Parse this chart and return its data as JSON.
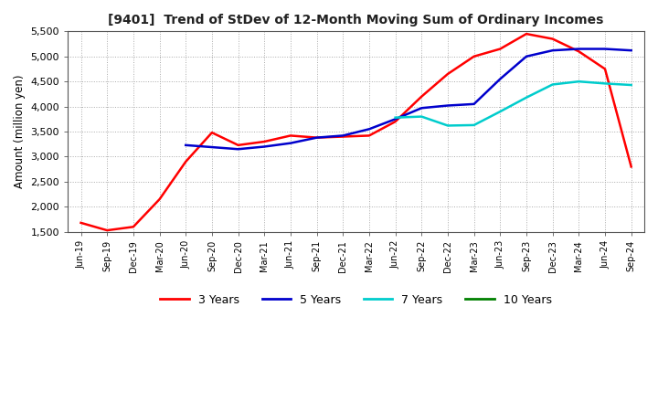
{
  "title": "[9401]  Trend of StDev of 12-Month Moving Sum of Ordinary Incomes",
  "ylabel": "Amount (million yen)",
  "ylim": [
    1500,
    5500
  ],
  "yticks": [
    1500,
    2000,
    2500,
    3000,
    3500,
    4000,
    4500,
    5000,
    5500
  ],
  "background_color": "#ffffff",
  "grid_color": "#aaaaaa",
  "dates": [
    "Jun-19",
    "Sep-19",
    "Dec-19",
    "Mar-20",
    "Jun-20",
    "Sep-20",
    "Dec-20",
    "Mar-21",
    "Jun-21",
    "Sep-21",
    "Dec-21",
    "Mar-22",
    "Jun-22",
    "Sep-22",
    "Dec-22",
    "Mar-23",
    "Jun-23",
    "Sep-23",
    "Dec-23",
    "Mar-24",
    "Jun-24",
    "Sep-24"
  ],
  "series": {
    "3 Years": {
      "color": "#ff0000",
      "values": [
        1680,
        1530,
        1600,
        2150,
        2900,
        3480,
        3230,
        3300,
        3420,
        3380,
        3400,
        3420,
        3700,
        4200,
        4650,
        5000,
        5150,
        5450,
        5350,
        5100,
        4750,
        2800
      ]
    },
    "5 Years": {
      "color": "#0000cc",
      "values": [
        null,
        null,
        null,
        null,
        3230,
        3190,
        3150,
        3200,
        3270,
        3380,
        3420,
        3550,
        3750,
        3970,
        4020,
        4050,
        4550,
        5000,
        5120,
        5150,
        5150,
        5120
      ]
    },
    "7 Years": {
      "color": "#00cccc",
      "values": [
        null,
        null,
        null,
        null,
        null,
        null,
        null,
        null,
        null,
        null,
        null,
        null,
        3780,
        3800,
        3620,
        3630,
        3900,
        4180,
        4440,
        4500,
        4460,
        4430
      ]
    },
    "10 Years": {
      "color": "#008000",
      "values": [
        null,
        null,
        null,
        null,
        null,
        null,
        null,
        null,
        null,
        null,
        null,
        null,
        null,
        null,
        null,
        null,
        null,
        null,
        null,
        null,
        null,
        null
      ]
    }
  },
  "legend_labels": [
    "3 Years",
    "5 Years",
    "7 Years",
    "10 Years"
  ],
  "legend_colors": [
    "#ff0000",
    "#0000cc",
    "#00cccc",
    "#008000"
  ]
}
